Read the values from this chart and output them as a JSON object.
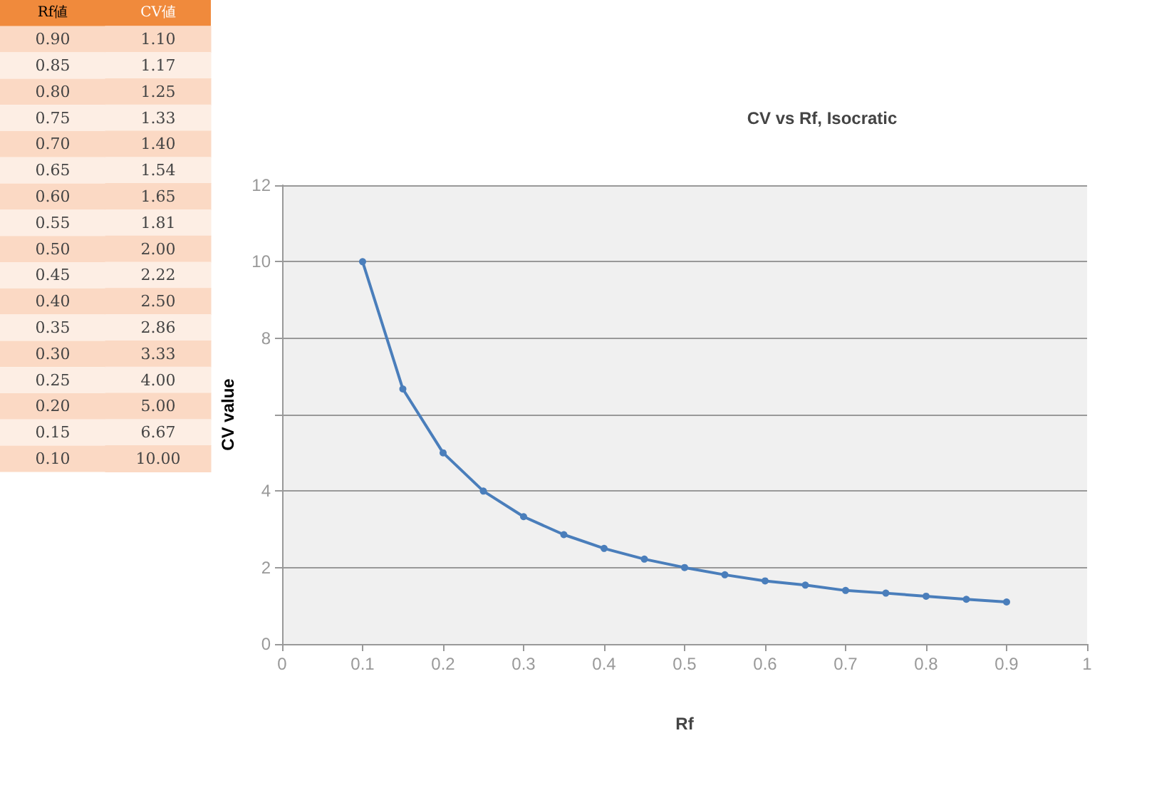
{
  "chart_data": [
    {
      "type": "heatmap",
      "ylabel": "Rf値",
      "categories": [
        "CV値"
      ],
      "y_categories": [
        "0.90",
        "0.85",
        "0.80",
        "0.75",
        "0.70",
        "0.65",
        "0.60",
        "0.55",
        "0.50",
        "0.45",
        "0.40",
        "0.35",
        "0.30",
        "0.25",
        "0.20",
        "0.15",
        "0.10"
      ],
      "cells": [
        [
          1.1
        ],
        [
          1.17
        ],
        [
          1.25
        ],
        [
          1.33
        ],
        [
          1.4
        ],
        [
          1.54
        ],
        [
          1.65
        ],
        [
          1.81
        ],
        [
          2
        ],
        [
          2.22
        ],
        [
          2.5
        ],
        [
          2.86
        ],
        [
          3.33
        ],
        [
          4
        ],
        [
          5
        ],
        [
          6.67
        ],
        [
          10
        ]
      ],
      "cell_labels": [
        [
          "1.10"
        ],
        [
          "1.17"
        ],
        [
          "1.25"
        ],
        [
          "1.33"
        ],
        [
          "1.40"
        ],
        [
          "1.54"
        ],
        [
          "1.65"
        ],
        [
          "1.81"
        ],
        [
          "2.00"
        ],
        [
          "2.22"
        ],
        [
          "2.50"
        ],
        [
          "2.86"
        ],
        [
          "3.33"
        ],
        [
          "4.00"
        ],
        [
          "5.00"
        ],
        [
          "6.67"
        ],
        [
          "10.00"
        ]
      ]
    },
    {
      "type": "line",
      "title": "CV vs Rf, Isocratic",
      "xlabel": "Rf",
      "ylabel": "CV value",
      "x": [
        0.1,
        0.15,
        0.2,
        0.25,
        0.3,
        0.35,
        0.4,
        0.45,
        0.5,
        0.55,
        0.6,
        0.65,
        0.7,
        0.75,
        0.8,
        0.85,
        0.9
      ],
      "series": [
        {
          "color": "#4a7ebb",
          "values": [
            10,
            6.67,
            5,
            4,
            3.33,
            2.86,
            2.5,
            2.22,
            2,
            1.81,
            1.65,
            1.54,
            1.4,
            1.33,
            1.25,
            1.17,
            1.1
          ]
        }
      ],
      "xlim": [
        0,
        1
      ],
      "xticks": [
        0,
        0.1,
        0.2,
        0.3,
        0.4,
        0.5,
        0.6,
        0.7,
        0.8,
        0.9,
        1
      ],
      "ylim": [
        0,
        12
      ],
      "yticks": [
        0,
        2,
        4,
        {
          "value": 6,
          "label": null
        },
        8,
        10,
        12
      ],
      "grid": "y",
      "marker": "circle",
      "line_style": "solid"
    }
  ]
}
